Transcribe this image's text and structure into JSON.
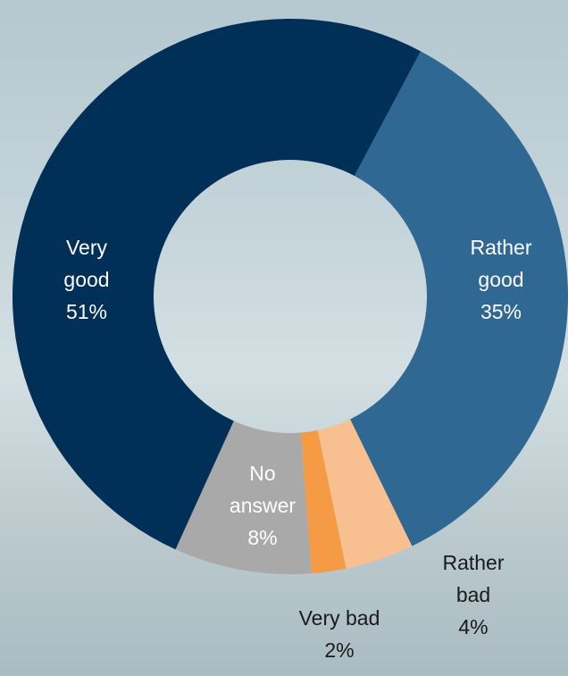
{
  "chart_data": {
    "type": "pie",
    "variant": "donut",
    "title": "",
    "legend": "none",
    "start_angle_deg": 28,
    "slices": [
      {
        "name": "Rather good",
        "value": 35,
        "value_label": "35%",
        "color": "#2f6892",
        "label_color": "#ffffff",
        "label_lines": [
          "Rather",
          "good"
        ]
      },
      {
        "name": "Rather bad",
        "value": 4,
        "value_label": "4%",
        "color": "#f8c091",
        "label_color": "#1a1a1a",
        "label_lines": [
          "Rather",
          "bad"
        ]
      },
      {
        "name": "Very bad",
        "value": 2,
        "value_label": "2%",
        "color": "#f59a45",
        "label_color": "#1a1a1a",
        "label_lines": [
          "Very bad"
        ]
      },
      {
        "name": "No answer",
        "value": 8,
        "value_label": "8%",
        "color": "#a9a9a9",
        "label_color": "#ffffff",
        "label_lines": [
          "No",
          "answer"
        ]
      },
      {
        "name": "Very good",
        "value": 51,
        "value_label": "51%",
        "color": "#002f57",
        "label_color": "#ffffff",
        "label_lines": [
          "Very",
          "good"
        ]
      }
    ]
  }
}
